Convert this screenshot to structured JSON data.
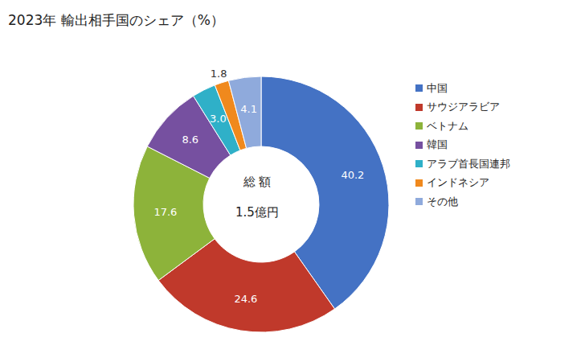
{
  "chart_data": {
    "type": "pie",
    "title": "2023年 輸出相手国のシェア（%）",
    "categories": [
      "中国",
      "サウジアラビア",
      "ベトナム",
      "韓国",
      "アラブ首長国連邦",
      "インドネシア",
      "その他"
    ],
    "values": [
      40.2,
      24.6,
      17.6,
      8.6,
      3.0,
      1.8,
      4.1
    ],
    "value_labels": [
      "40.2",
      "24.6",
      "17.6",
      "8.6",
      "3.0",
      "1.8",
      "4.1"
    ],
    "colors": [
      "#4472c4",
      "#c0392b",
      "#8db33a",
      "#7650a0",
      "#2fb0c8",
      "#f0891d",
      "#8faadc"
    ],
    "data_labels": true,
    "legend": "right",
    "annotations": [
      "総 額",
      "1.5億円"
    ]
  }
}
